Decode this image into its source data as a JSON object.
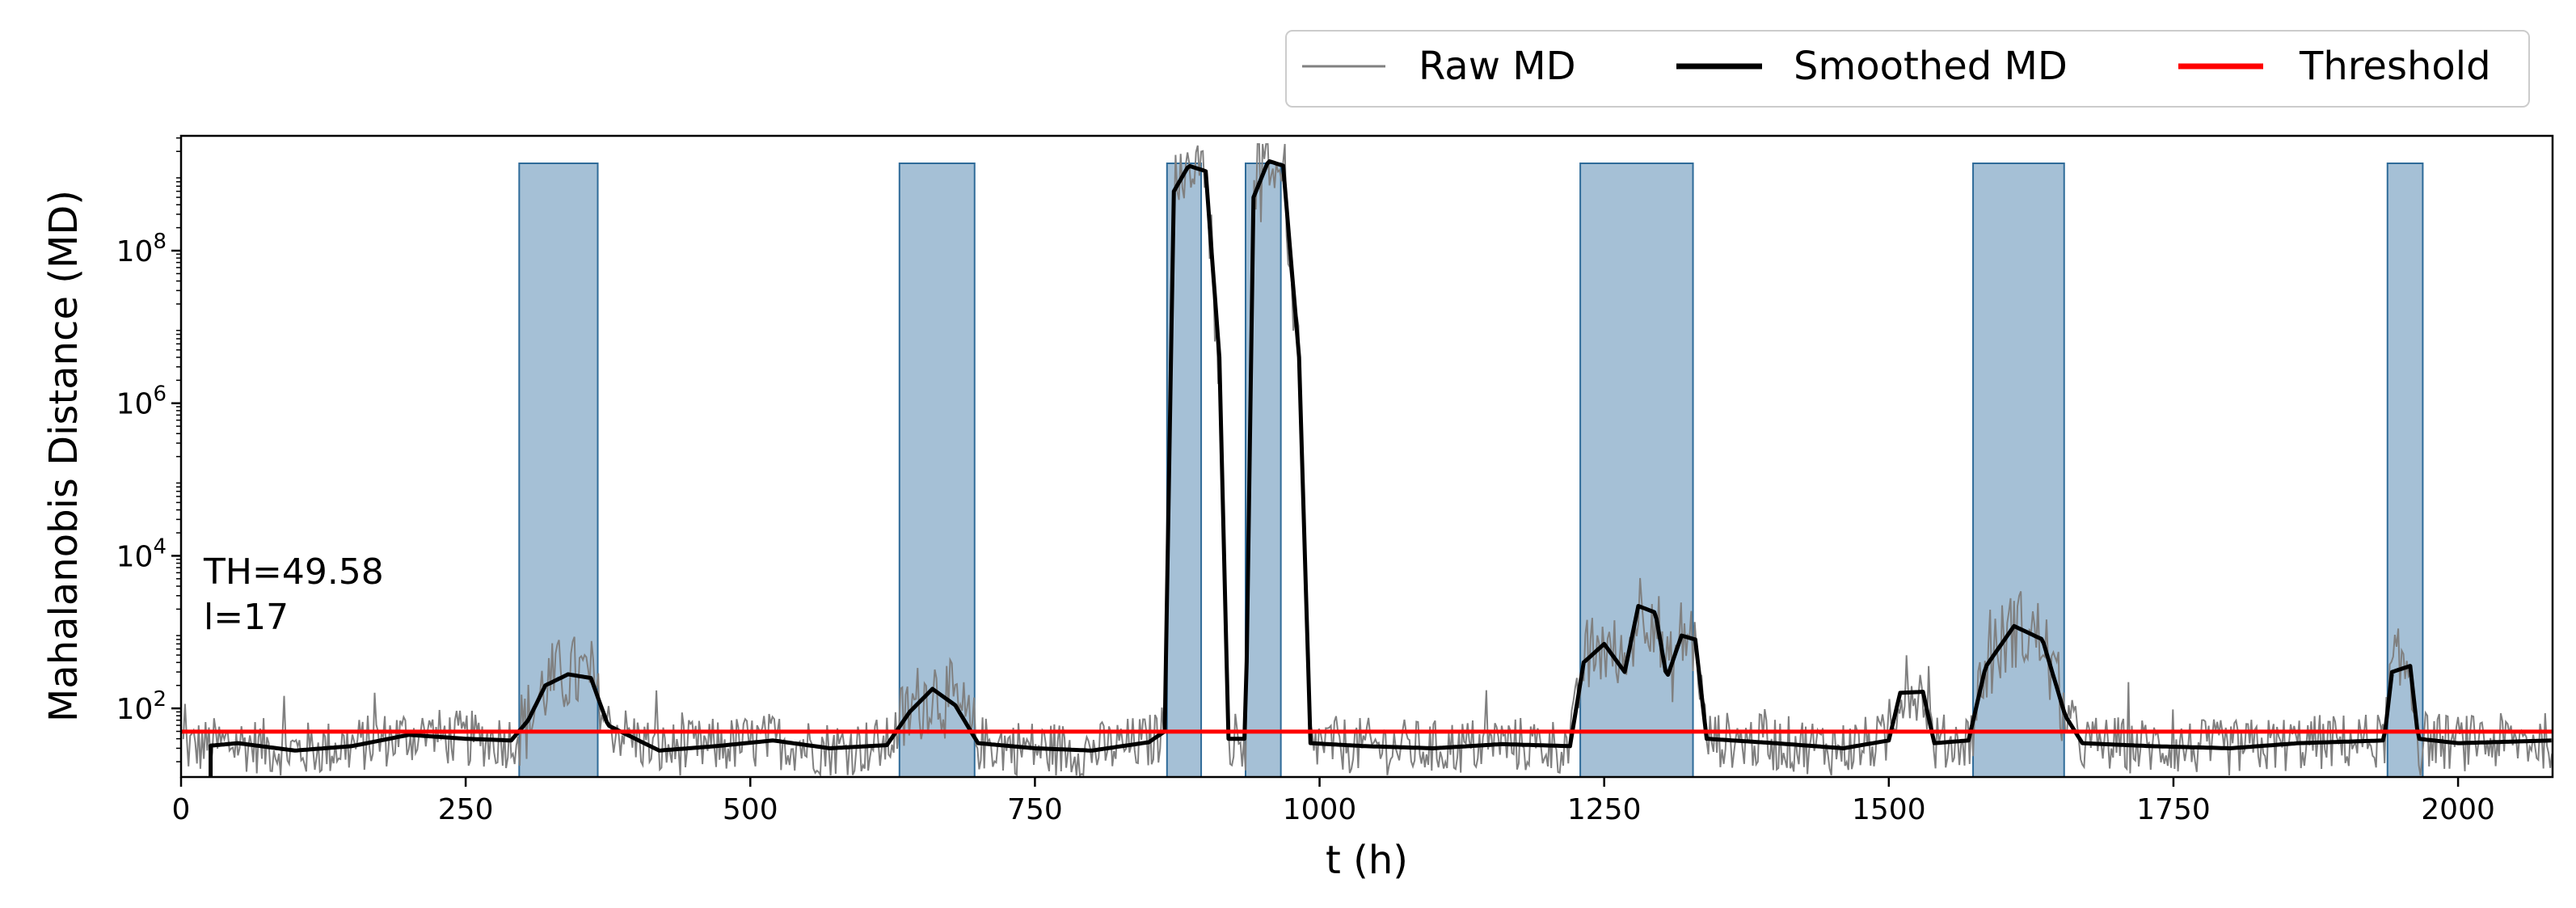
{
  "chart_data": {
    "type": "line",
    "title": "",
    "xlabel": "t (h)",
    "ylabel": "Mahalanobis Distance (MD)",
    "xlim": [
      0,
      2083
    ],
    "ylim": [
      12.6,
      3200000000.0
    ],
    "yscale": "log",
    "grid": false,
    "legend_placement": "top-right (above plot)",
    "xticks": [
      0,
      250,
      500,
      750,
      1000,
      1250,
      1500,
      1750,
      2000
    ],
    "xtick_labels": [
      "0",
      "250",
      "500",
      "750",
      "1000",
      "1250",
      "1500",
      "1750",
      "2000"
    ],
    "yticks": [
      100,
      10000,
      1000000,
      100000000
    ],
    "ytick_labels": [
      {
        "base": "10",
        "exp": "2"
      },
      {
        "base": "10",
        "exp": "4"
      },
      {
        "base": "10",
        "exp": "6"
      },
      {
        "base": "10",
        "exp": "8"
      }
    ],
    "legend": [
      {
        "label": "Raw MD",
        "color": "#808080",
        "style": "thin"
      },
      {
        "label": "Smoothed MD",
        "color": "#000000",
        "style": "thick"
      },
      {
        "label": "Threshold",
        "color": "#ff0000",
        "style": "thick"
      }
    ],
    "annotations": [
      "TH=49.58",
      "l=17"
    ],
    "threshold": 49.58,
    "window_length": 17,
    "anomaly_intervals": [
      [
        297,
        366
      ],
      [
        631,
        697
      ],
      [
        866,
        896
      ],
      [
        935,
        966
      ],
      [
        1229,
        1328
      ],
      [
        1574,
        1654
      ],
      [
        1938,
        1969
      ]
    ],
    "smoothed_md_keypoints": [
      [
        0,
        30
      ],
      [
        50,
        35
      ],
      [
        100,
        28
      ],
      [
        150,
        32
      ],
      [
        200,
        45
      ],
      [
        250,
        40
      ],
      [
        290,
        38
      ],
      [
        305,
        70
      ],
      [
        320,
        200
      ],
      [
        340,
        280
      ],
      [
        360,
        250
      ],
      [
        375,
        60
      ],
      [
        420,
        28
      ],
      [
        470,
        32
      ],
      [
        520,
        38
      ],
      [
        570,
        30
      ],
      [
        620,
        33
      ],
      [
        640,
        90
      ],
      [
        660,
        180
      ],
      [
        680,
        110
      ],
      [
        700,
        35
      ],
      [
        750,
        30
      ],
      [
        800,
        28
      ],
      [
        850,
        36
      ],
      [
        864,
        50
      ],
      [
        872,
        600000000.0
      ],
      [
        885,
        1300000000.0
      ],
      [
        900,
        1100000000.0
      ],
      [
        912,
        4000000.0
      ],
      [
        920,
        40
      ],
      [
        935,
        40
      ],
      [
        942,
        500000000.0
      ],
      [
        955,
        1500000000.0
      ],
      [
        968,
        1300000000.0
      ],
      [
        982,
        4000000.0
      ],
      [
        992,
        35
      ],
      [
        1040,
        32
      ],
      [
        1100,
        30
      ],
      [
        1160,
        34
      ],
      [
        1220,
        32
      ],
      [
        1232,
        400
      ],
      [
        1250,
        700
      ],
      [
        1268,
        300
      ],
      [
        1280,
        2200
      ],
      [
        1295,
        1800
      ],
      [
        1305,
        250
      ],
      [
        1318,
        900
      ],
      [
        1330,
        800
      ],
      [
        1340,
        40
      ],
      [
        1400,
        35
      ],
      [
        1460,
        30
      ],
      [
        1500,
        38
      ],
      [
        1510,
        160
      ],
      [
        1530,
        165
      ],
      [
        1540,
        35
      ],
      [
        1570,
        38
      ],
      [
        1585,
        350
      ],
      [
        1610,
        1200
      ],
      [
        1635,
        800
      ],
      [
        1655,
        80
      ],
      [
        1670,
        35
      ],
      [
        1730,
        32
      ],
      [
        1800,
        30
      ],
      [
        1860,
        35
      ],
      [
        1935,
        38
      ],
      [
        1942,
        300
      ],
      [
        1958,
        360
      ],
      [
        1965,
        40
      ],
      [
        2000,
        35
      ],
      [
        2083,
        38
      ]
    ],
    "raw_md_range_note": "Raw MD fluctuates roughly between 10 and 300 outside anomalies, with peaks up to ~1e4 in 1229–1328, ~2e3 in 1574–1654, ~1e5 near 910 and 985"
  }
}
